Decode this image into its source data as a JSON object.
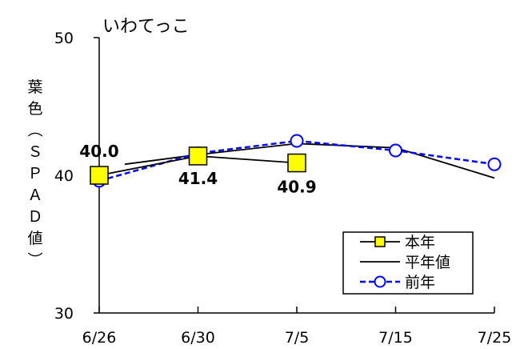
{
  "chart_data": {
    "type": "line",
    "title": "いわてっこ",
    "ylabel": "葉色（ＳＰＡＤ値）",
    "xlabel": "",
    "categories": [
      "6/26",
      "6/30",
      "7/5",
      "7/15",
      "7/25"
    ],
    "ylim": [
      30,
      50
    ],
    "yticks": [
      30,
      40,
      50
    ],
    "grid": false,
    "legend_position": "bottom-right",
    "series": [
      {
        "name": "本年",
        "values": [
          40.0,
          41.4,
          40.9,
          null,
          null
        ],
        "color": "#000000",
        "marker": "square",
        "marker_fill": "#ffff00",
        "dash": "solid"
      },
      {
        "name": "平年値",
        "values": [
          40.8,
          41.5,
          42.3,
          42.0,
          39.8
        ],
        "color": "#000000",
        "marker": "none",
        "dash": "solid"
      },
      {
        "name": "前年",
        "values": [
          39.6,
          41.6,
          42.5,
          41.8,
          40.8
        ],
        "color": "#0000ff",
        "marker": "circle",
        "marker_fill": "#ffffff",
        "dash": "dashed"
      }
    ],
    "data_labels": [
      {
        "series": "本年",
        "index": 0,
        "text": "40.0"
      },
      {
        "series": "本年",
        "index": 1,
        "text": "41.4"
      },
      {
        "series": "本年",
        "index": 2,
        "text": "40.9"
      }
    ]
  }
}
